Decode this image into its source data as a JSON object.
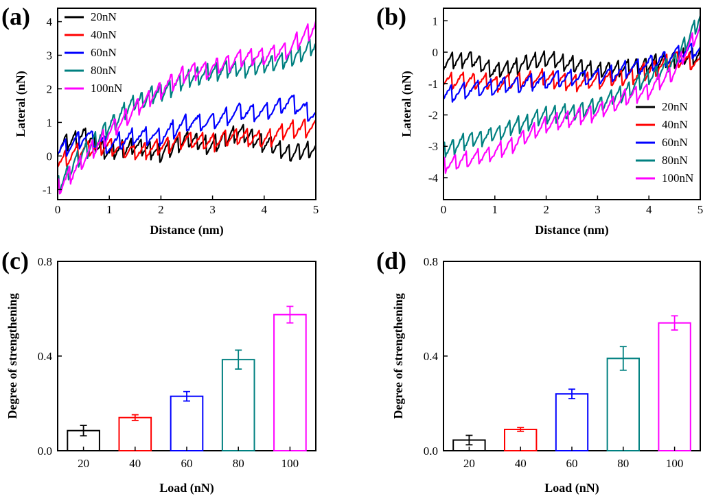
{
  "chart_data": [
    {
      "panel": "(a)",
      "type": "line",
      "xlabel": "Distance (nm)",
      "ylabel": "Lateral  (nN)",
      "xlim": [
        0,
        5
      ],
      "ylim": [
        -1.3,
        4.4
      ],
      "xticks": [
        0,
        1,
        2,
        3,
        4,
        5
      ],
      "yticks": [
        -1,
        0,
        1,
        2,
        3,
        4
      ],
      "legend_position": "top-left",
      "series": [
        {
          "name": "20nN",
          "color": "#000000",
          "x": [
            0,
            0.5,
            1,
            1.5,
            2,
            2.5,
            3,
            3.5,
            4,
            4.5,
            5
          ],
          "y": [
            0.3,
            0.6,
            0.1,
            0.3,
            0.1,
            0.5,
            0.3,
            0.7,
            0.4,
            0.1,
            0.2
          ]
        },
        {
          "name": "40nN",
          "color": "#ff0000",
          "x": [
            0,
            0.5,
            1,
            1.5,
            2,
            2.5,
            3,
            3.5,
            4,
            4.5,
            5
          ],
          "y": [
            -0.2,
            0.2,
            0.3,
            0.1,
            0.3,
            0.5,
            0.4,
            0.6,
            0.5,
            0.8,
            0.8
          ]
        },
        {
          "name": "60nN",
          "color": "#0000ff",
          "x": [
            0,
            0.5,
            1,
            1.5,
            2,
            2.5,
            3,
            3.5,
            4,
            4.5,
            5
          ],
          "y": [
            0.1,
            0.6,
            0.3,
            0.6,
            0.6,
            1.0,
            1.0,
            1.3,
            1.3,
            1.6,
            1.2
          ]
        },
        {
          "name": "80nN",
          "color": "#008080",
          "x": [
            0,
            0.5,
            1,
            1.5,
            2,
            2.5,
            3,
            3.5,
            4,
            4.5,
            5
          ],
          "y": [
            -0.9,
            0.1,
            0.9,
            1.6,
            1.9,
            2.3,
            2.5,
            2.6,
            2.7,
            2.9,
            3.3
          ]
        },
        {
          "name": "100nN",
          "color": "#ff00ff",
          "x": [
            0,
            0.5,
            1,
            1.5,
            2,
            2.5,
            3,
            3.5,
            4,
            4.5,
            5
          ],
          "y": [
            -1.0,
            -0.1,
            0.7,
            1.4,
            2.0,
            2.5,
            2.6,
            2.9,
            3.0,
            3.2,
            3.9
          ]
        }
      ]
    },
    {
      "panel": "(b)",
      "type": "line",
      "xlabel": "Distance (nm)",
      "ylabel": "Lateral  (nN)",
      "xlim": [
        0,
        5
      ],
      "ylim": [
        -4.7,
        1.4
      ],
      "xticks": [
        0,
        1,
        2,
        3,
        4,
        5
      ],
      "yticks": [
        -4,
        -3,
        -2,
        -1,
        0,
        1
      ],
      "legend_position": "bottom-right",
      "series": [
        {
          "name": "20nN",
          "color": "#000000",
          "x": [
            0,
            0.5,
            1,
            1.5,
            2,
            2.5,
            3,
            3.5,
            4,
            4.5,
            5
          ],
          "y": [
            -0.3,
            -0.2,
            -0.6,
            -0.4,
            -0.2,
            -0.4,
            -0.6,
            -0.5,
            -0.4,
            -0.2,
            -0.1
          ]
        },
        {
          "name": "40nN",
          "color": "#ff0000",
          "x": [
            0,
            0.5,
            1,
            1.5,
            2,
            2.5,
            3,
            3.5,
            4,
            4.5,
            5
          ],
          "y": [
            -0.9,
            -0.9,
            -1.0,
            -0.9,
            -0.8,
            -1.0,
            -0.9,
            -0.8,
            -0.6,
            -0.2,
            -0.4
          ]
        },
        {
          "name": "60nN",
          "color": "#0000ff",
          "x": [
            0,
            0.5,
            1,
            1.5,
            2,
            2.5,
            3,
            3.5,
            4,
            4.5,
            5
          ],
          "y": [
            -1.4,
            -1.2,
            -1.1,
            -1.0,
            -0.9,
            -0.8,
            -0.8,
            -0.6,
            -0.4,
            -0.1,
            0.1
          ]
        },
        {
          "name": "80nN",
          "color": "#008080",
          "x": [
            0,
            0.5,
            1,
            1.5,
            2,
            2.5,
            3,
            3.5,
            4,
            4.5,
            5
          ],
          "y": [
            -3.1,
            -2.8,
            -2.6,
            -2.3,
            -2.0,
            -1.9,
            -1.7,
            -1.3,
            -0.8,
            -0.3,
            1.1
          ]
        },
        {
          "name": "100nN",
          "color": "#ff00ff",
          "x": [
            0,
            0.5,
            1,
            1.5,
            2,
            2.5,
            3,
            3.5,
            4,
            4.5,
            5
          ],
          "y": [
            -3.6,
            -3.4,
            -3.2,
            -2.8,
            -2.3,
            -2.1,
            -1.9,
            -1.5,
            -1.2,
            -0.6,
            0.8
          ]
        }
      ]
    },
    {
      "panel": "(c)",
      "type": "bar",
      "xlabel": "Load (nN)",
      "ylabel": "Degree of strengthening",
      "categories": [
        "20",
        "40",
        "60",
        "80",
        "100"
      ],
      "values": [
        0.085,
        0.14,
        0.23,
        0.385,
        0.575
      ],
      "errors": [
        0.022,
        0.012,
        0.02,
        0.04,
        0.035
      ],
      "colors": [
        "#000000",
        "#ff0000",
        "#0000ff",
        "#008080",
        "#ff00ff"
      ],
      "ylim": [
        0.0,
        0.8
      ],
      "yticks": [
        "0.0",
        "0.4",
        "0.8"
      ]
    },
    {
      "panel": "(d)",
      "type": "bar",
      "xlabel": "Load (nN)",
      "ylabel": "Degree of strengthening",
      "categories": [
        "20",
        "40",
        "60",
        "80",
        "100"
      ],
      "values": [
        0.045,
        0.09,
        0.24,
        0.39,
        0.54
      ],
      "errors": [
        0.02,
        0.008,
        0.02,
        0.05,
        0.03
      ],
      "colors": [
        "#000000",
        "#ff0000",
        "#0000ff",
        "#008080",
        "#ff00ff"
      ],
      "ylim": [
        0.0,
        0.8
      ],
      "yticks": [
        "0.0",
        "0.4",
        "0.8"
      ]
    }
  ]
}
